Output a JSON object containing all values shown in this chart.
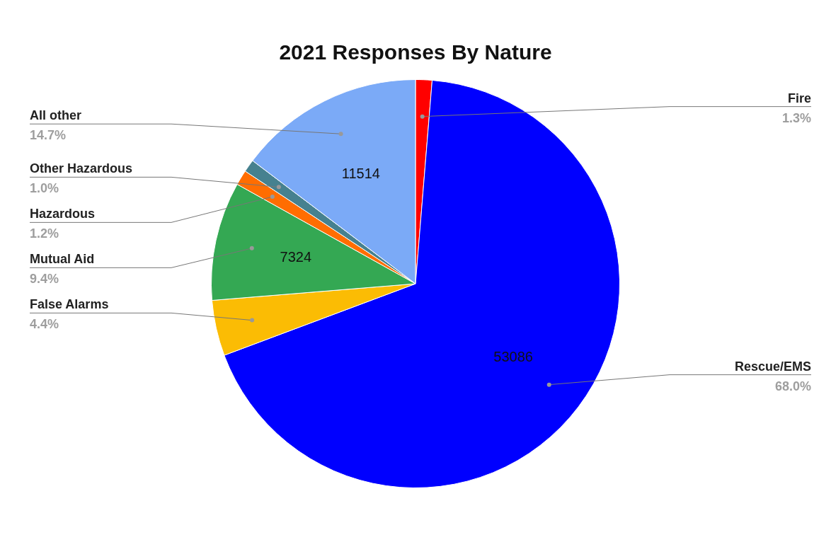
{
  "chart_data": {
    "type": "pie",
    "title": "2021 Responses By Nature",
    "categories": [
      "Fire",
      "Rescue/EMS",
      "False Alarms",
      "Mutual Aid",
      "Hazardous",
      "Other Hazardous",
      "All other"
    ],
    "values": [
      1.3,
      68.0,
      4.4,
      9.4,
      1.2,
      1.0,
      14.7
    ],
    "colors": [
      "#ff0000",
      "#0000ff",
      "#fbbc04",
      "#34a853",
      "#ff6d01",
      "#46818f",
      "#7baaf7"
    ],
    "value_labels": [
      "1.3%",
      "68.0%",
      "4.4%",
      "9.4%",
      "1.2%",
      "1.0%",
      "14.7%"
    ],
    "annotations": [
      {
        "text": "53086",
        "x": "Rescue/EMS"
      },
      {
        "text": "7324",
        "x": "Mutual Aid"
      },
      {
        "text": "11514",
        "x": "All other"
      }
    ],
    "legend": false
  }
}
